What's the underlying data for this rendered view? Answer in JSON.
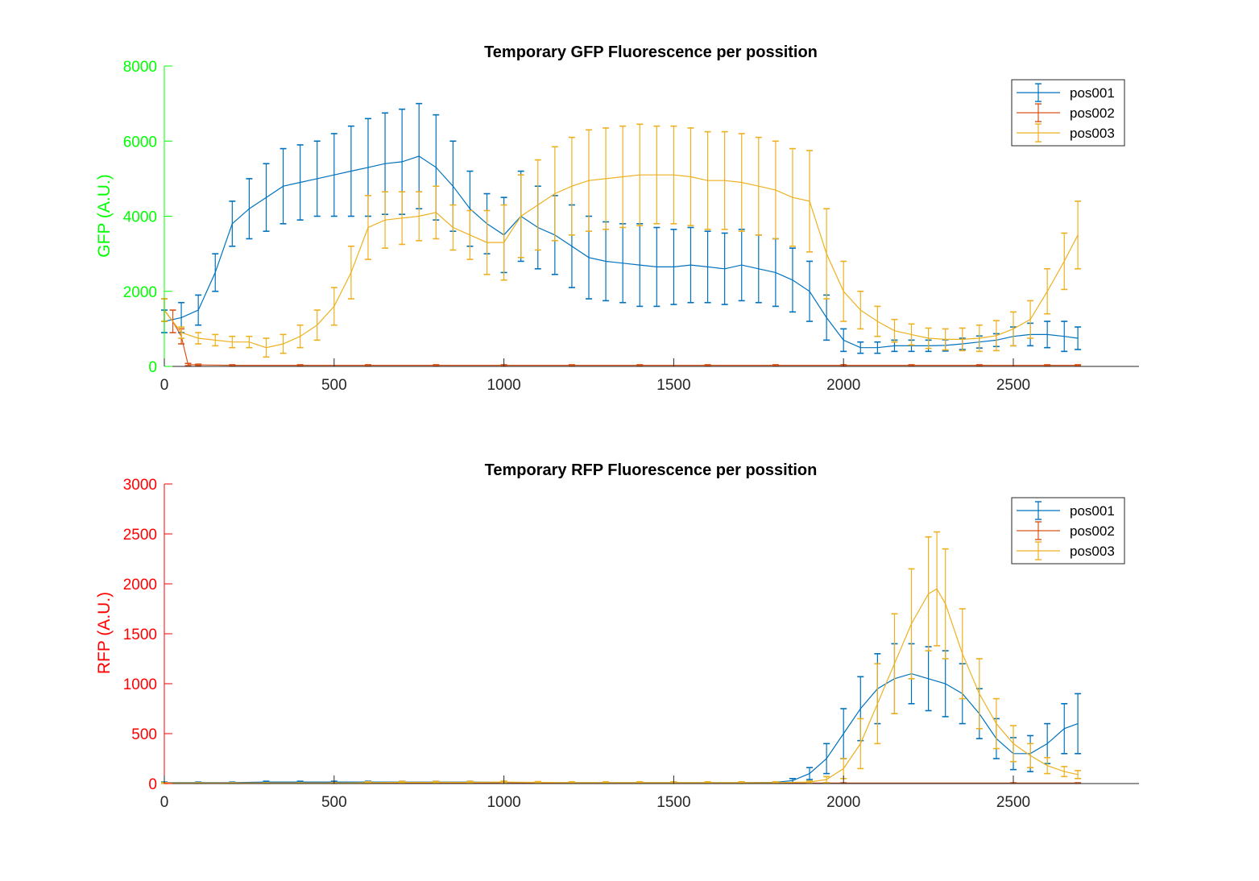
{
  "colors": {
    "pos001": "#0072BD",
    "pos002": "#D95319",
    "pos003": "#EDB120",
    "gfp_axis": "#00FF00",
    "rfp_axis": "#FF0000",
    "x_axis": "#262626"
  },
  "chart_data": [
    {
      "type": "line",
      "title": "Temporary GFP Fluorescence per possition",
      "xlabel": "",
      "ylabel": "GFP (A.U.)",
      "xlim": [
        0,
        2870
      ],
      "ylim": [
        0,
        8000
      ],
      "xticks": [
        0,
        500,
        1000,
        1500,
        2000,
        2500
      ],
      "yticks": [
        0,
        2000,
        4000,
        6000,
        8000
      ],
      "grid": false,
      "legend": "top-right",
      "error_bars": true,
      "series": [
        {
          "name": "pos001",
          "color_key": "pos001",
          "x": [
            0,
            50,
            100,
            150,
            200,
            250,
            300,
            350,
            400,
            450,
            500,
            550,
            600,
            650,
            700,
            750,
            800,
            850,
            900,
            950,
            1000,
            1050,
            1100,
            1150,
            1200,
            1250,
            1300,
            1350,
            1400,
            1450,
            1500,
            1550,
            1600,
            1650,
            1700,
            1750,
            1800,
            1850,
            1900,
            1950,
            2000,
            2050,
            2100,
            2150,
            2200,
            2250,
            2300,
            2350,
            2400,
            2450,
            2500,
            2550,
            2600,
            2650,
            2690
          ],
          "y": [
            1200,
            1300,
            1500,
            2500,
            3800,
            4200,
            4500,
            4800,
            4900,
            5000,
            5100,
            5200,
            5300,
            5400,
            5450,
            5600,
            5300,
            4800,
            4200,
            3800,
            3500,
            4000,
            3700,
            3500,
            3200,
            2900,
            2800,
            2750,
            2700,
            2650,
            2650,
            2700,
            2650,
            2600,
            2700,
            2600,
            2500,
            2300,
            2000,
            1300,
            700,
            500,
            500,
            550,
            550,
            550,
            560,
            600,
            650,
            700,
            800,
            850,
            850,
            800,
            750
          ],
          "err": [
            300,
            400,
            400,
            500,
            600,
            800,
            900,
            1000,
            1000,
            1000,
            1100,
            1200,
            1300,
            1350,
            1400,
            1400,
            1400,
            1200,
            1000,
            800,
            1000,
            1200,
            1100,
            1050,
            1100,
            1100,
            1050,
            1050,
            1100,
            1050,
            1000,
            1000,
            950,
            950,
            950,
            900,
            900,
            850,
            800,
            600,
            300,
            150,
            150,
            150,
            150,
            150,
            150,
            150,
            160,
            170,
            250,
            300,
            350,
            400,
            300
          ]
        },
        {
          "name": "pos002",
          "color_key": "pos002",
          "x": [
            0,
            25,
            50,
            70,
            100,
            200,
            400,
            600,
            800,
            1000,
            1200,
            1400,
            1600,
            1800,
            2000,
            2200,
            2400,
            2600,
            2690
          ],
          "y": [
            1500,
            1200,
            800,
            50,
            40,
            30,
            30,
            30,
            30,
            30,
            30,
            30,
            30,
            30,
            30,
            30,
            30,
            30,
            30
          ],
          "err": [
            300,
            300,
            200,
            30,
            20,
            15,
            15,
            15,
            15,
            15,
            15,
            15,
            15,
            15,
            15,
            15,
            15,
            15,
            15
          ]
        },
        {
          "name": "pos003",
          "color_key": "pos003",
          "x": [
            0,
            50,
            100,
            150,
            200,
            250,
            300,
            350,
            400,
            450,
            500,
            550,
            600,
            650,
            700,
            750,
            800,
            850,
            900,
            950,
            1000,
            1050,
            1100,
            1150,
            1200,
            1250,
            1300,
            1350,
            1400,
            1450,
            1500,
            1550,
            1600,
            1650,
            1700,
            1750,
            1800,
            1850,
            1900,
            1950,
            2000,
            2050,
            2100,
            2150,
            2200,
            2250,
            2300,
            2350,
            2400,
            2450,
            2500,
            2550,
            2600,
            2650,
            2690
          ],
          "y": [
            1500,
            900,
            750,
            700,
            650,
            650,
            500,
            600,
            800,
            1100,
            1600,
            2500,
            3700,
            3900,
            3950,
            4000,
            4100,
            3700,
            3500,
            3300,
            3300,
            4000,
            4300,
            4600,
            4800,
            4950,
            5000,
            5050,
            5100,
            5100,
            5100,
            5050,
            4950,
            4950,
            4900,
            4800,
            4700,
            4500,
            4400,
            3000,
            2000,
            1500,
            1200,
            950,
            850,
            750,
            720,
            720,
            750,
            820,
            1000,
            1250,
            2000,
            2800,
            3500
          ],
          "err": [
            300,
            150,
            150,
            150,
            150,
            150,
            250,
            250,
            300,
            400,
            500,
            700,
            850,
            750,
            700,
            650,
            700,
            600,
            650,
            850,
            1000,
            1100,
            1200,
            1250,
            1300,
            1350,
            1350,
            1350,
            1350,
            1300,
            1300,
            1300,
            1300,
            1300,
            1300,
            1300,
            1300,
            1300,
            1350,
            1200,
            800,
            500,
            400,
            300,
            280,
            270,
            280,
            300,
            350,
            400,
            450,
            500,
            600,
            750,
            900
          ]
        }
      ]
    },
    {
      "type": "line",
      "title": "Temporary RFP Fluorescence per possition",
      "xlabel": "",
      "ylabel": "RFP (A.U.)",
      "xlim": [
        0,
        2870
      ],
      "ylim": [
        0,
        3000
      ],
      "xticks": [
        0,
        500,
        1000,
        1500,
        2000,
        2500
      ],
      "yticks": [
        0,
        500,
        1000,
        1500,
        2000,
        2500,
        3000
      ],
      "grid": false,
      "legend": "top-right",
      "error_bars": true,
      "series": [
        {
          "name": "pos001",
          "color_key": "pos001",
          "x": [
            0,
            100,
            200,
            300,
            400,
            500,
            600,
            700,
            800,
            900,
            1000,
            1100,
            1200,
            1300,
            1400,
            1500,
            1600,
            1700,
            1800,
            1850,
            1900,
            1950,
            2000,
            2050,
            2100,
            2150,
            2200,
            2250,
            2300,
            2350,
            2400,
            2450,
            2500,
            2550,
            2600,
            2650,
            2690
          ],
          "y": [
            10,
            10,
            10,
            15,
            15,
            15,
            15,
            15,
            15,
            15,
            12,
            10,
            10,
            10,
            10,
            10,
            10,
            10,
            12,
            30,
            100,
            250,
            500,
            750,
            950,
            1050,
            1100,
            1050,
            1000,
            900,
            700,
            450,
            300,
            300,
            400,
            550,
            600
          ],
          "err": [
            5,
            5,
            5,
            8,
            8,
            8,
            8,
            8,
            8,
            8,
            6,
            5,
            5,
            5,
            5,
            5,
            5,
            5,
            6,
            20,
            60,
            150,
            250,
            320,
            350,
            350,
            300,
            320,
            330,
            300,
            250,
            200,
            160,
            180,
            200,
            250,
            300
          ]
        },
        {
          "name": "pos002",
          "color_key": "pos002",
          "x": [
            0,
            500,
            1000,
            1500,
            2000,
            2500,
            2690
          ],
          "y": [
            5,
            5,
            5,
            5,
            5,
            5,
            5
          ],
          "err": [
            3,
            3,
            3,
            3,
            3,
            3,
            3
          ]
        },
        {
          "name": "pos003",
          "color_key": "pos003",
          "x": [
            0,
            100,
            200,
            300,
            400,
            500,
            600,
            700,
            800,
            900,
            1000,
            1100,
            1200,
            1300,
            1400,
            1500,
            1600,
            1700,
            1800,
            1900,
            1950,
            2000,
            2050,
            2100,
            2150,
            2200,
            2250,
            2275,
            2300,
            2350,
            2400,
            2450,
            2500,
            2550,
            2600,
            2650,
            2690
          ],
          "y": [
            5,
            5,
            5,
            5,
            5,
            5,
            10,
            12,
            12,
            12,
            15,
            12,
            10,
            10,
            10,
            10,
            10,
            10,
            10,
            15,
            40,
            150,
            400,
            800,
            1200,
            1600,
            1900,
            1950,
            1800,
            1300,
            900,
            600,
            400,
            280,
            180,
            120,
            90
          ],
          "err": [
            3,
            3,
            3,
            3,
            3,
            3,
            8,
            10,
            10,
            10,
            10,
            8,
            8,
            8,
            8,
            8,
            8,
            8,
            8,
            10,
            30,
            100,
            250,
            400,
            500,
            550,
            570,
            570,
            550,
            450,
            350,
            250,
            180,
            120,
            80,
            50,
            40
          ]
        }
      ]
    }
  ]
}
